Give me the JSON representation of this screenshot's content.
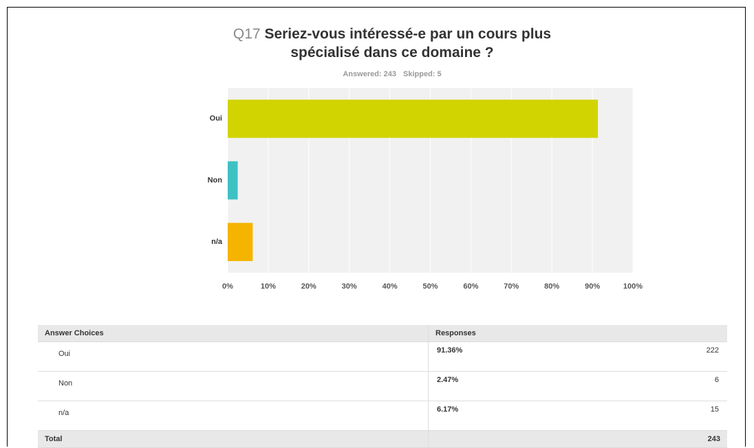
{
  "chart_data": {
    "type": "bar",
    "orientation": "horizontal",
    "question_number": "Q17",
    "title": "Seriez-vous intéressé-e par un cours plus spécialisé dans ce domaine ?",
    "answered": "Answered: 243",
    "skipped": "Skipped: 5",
    "categories": [
      "Oui",
      "Non",
      "n/a"
    ],
    "values": [
      91.36,
      2.47,
      6.17
    ],
    "colors": [
      "#d1d400",
      "#3fc1c3",
      "#f4b400"
    ],
    "xlim": [
      0,
      100
    ],
    "xticks": [
      {
        "value": 0,
        "label": "0%"
      },
      {
        "value": 10,
        "label": "10%"
      },
      {
        "value": 20,
        "label": "20%"
      },
      {
        "value": 30,
        "label": "30%"
      },
      {
        "value": 40,
        "label": "40%"
      },
      {
        "value": 50,
        "label": "50%"
      },
      {
        "value": 60,
        "label": "60%"
      },
      {
        "value": 70,
        "label": "70%"
      },
      {
        "value": 80,
        "label": "80%"
      },
      {
        "value": 90,
        "label": "90%"
      },
      {
        "value": 100,
        "label": "100%"
      }
    ],
    "grid": true
  },
  "table": {
    "header": [
      "Answer Choices",
      "Responses"
    ],
    "rows": [
      [
        "Oui",
        "91.36%",
        222
      ],
      [
        "Non",
        "2.47%",
        6
      ],
      [
        "n/a",
        "6.17%",
        15
      ]
    ],
    "total": [
      "Total",
      243
    ]
  }
}
